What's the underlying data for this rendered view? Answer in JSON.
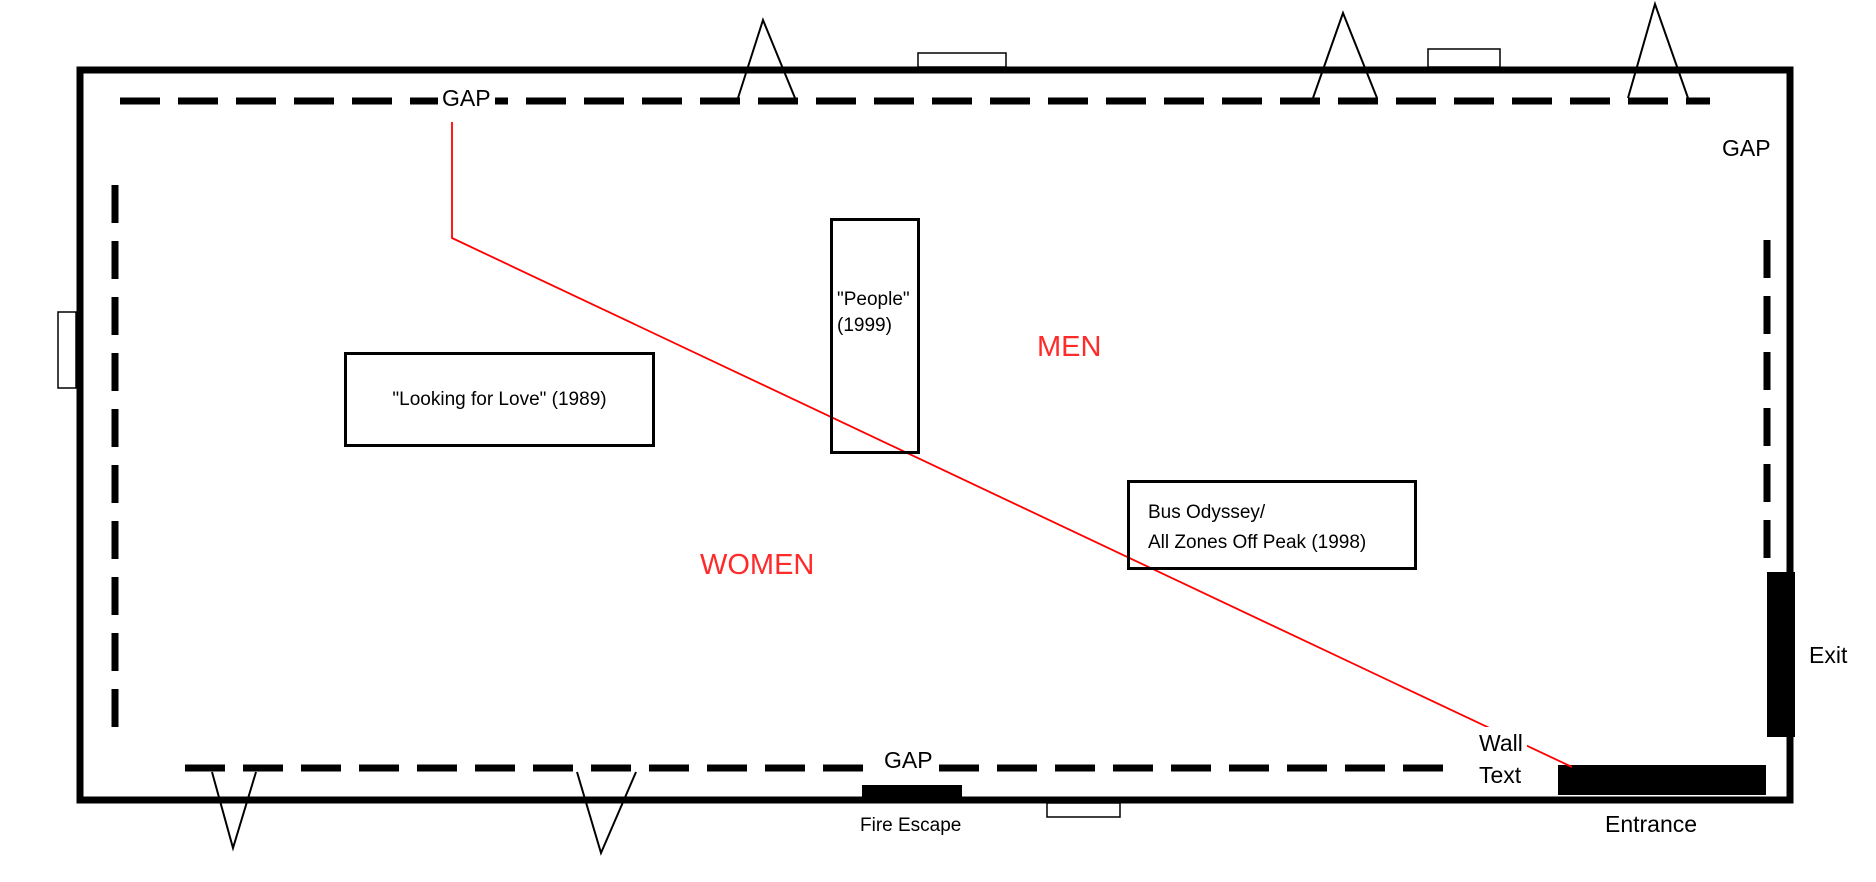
{
  "colors": {
    "wall": "#000000",
    "divider": "#ff0000",
    "zone_label": "#ff2a2a"
  },
  "labels": {
    "gap_top": "GAP",
    "gap_right": "GAP",
    "gap_bottom": "GAP",
    "zone_men": "MEN",
    "zone_women": "WOMEN",
    "exit": "Exit",
    "entrance": "Entrance",
    "fire_escape": "Fire Escape",
    "wall_text_line1": "Wall",
    "wall_text_line2": "Text"
  },
  "artworks": {
    "looking_for_love": "\"Looking for Love\" (1989)",
    "people_line1": "\"People\"",
    "people_line2": "(1999)",
    "bus_line1": "Bus Odyssey/",
    "bus_line2": "All Zones Off Peak (1998)"
  }
}
